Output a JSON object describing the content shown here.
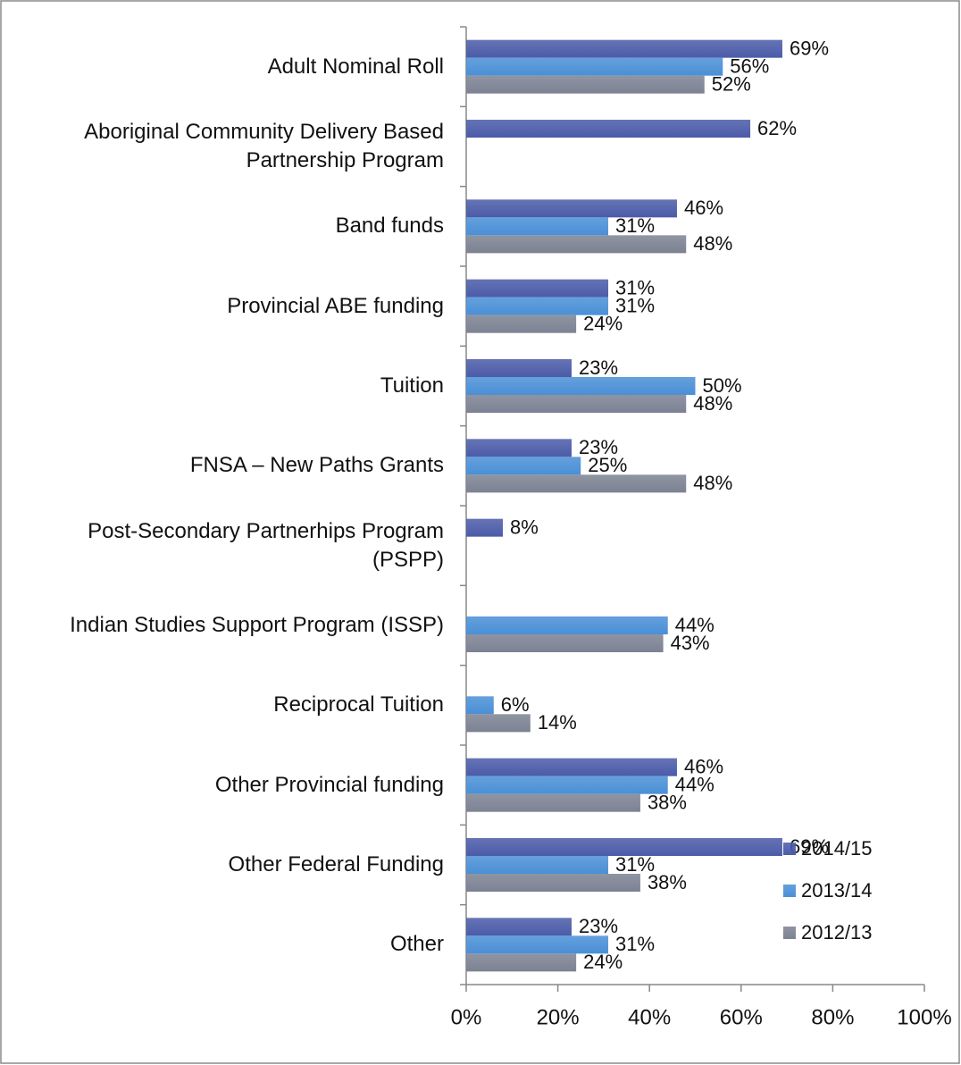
{
  "chart_data": {
    "type": "bar",
    "orientation": "horizontal",
    "categories": [
      "Adult Nominal Roll",
      "Aboriginal Community Delivery Based Partnership Program",
      "Band funds",
      "Provincial ABE funding",
      "Tuition",
      "FNSA – New Paths Grants",
      "Post-Secondary Partnerhips Program (PSPP)",
      "Indian Studies Support Program (ISSP)",
      "Reciprocal Tuition",
      "Other Provincial funding",
      "Other Federal Funding",
      "Other"
    ],
    "series": [
      {
        "name": "2014/15",
        "color": "#4b5ba8",
        "values": [
          69,
          62,
          46,
          31,
          23,
          23,
          8,
          null,
          null,
          46,
          69,
          23
        ],
        "value_labels": [
          "69%",
          "62%",
          "46%",
          "31%",
          "23%",
          "23%",
          "8%",
          null,
          null,
          "46%",
          "69%",
          "23%"
        ]
      },
      {
        "name": "2013/14",
        "color": "#4a8fd6",
        "values": [
          56,
          null,
          31,
          31,
          50,
          25,
          null,
          44,
          6,
          44,
          31,
          31
        ],
        "value_labels": [
          "56%",
          null,
          "31%",
          "31%",
          "50%",
          "25%",
          null,
          "44%",
          "6%",
          "44%",
          "31%",
          "31%"
        ]
      },
      {
        "name": "2012/13",
        "color": "#7c8293",
        "values": [
          52,
          null,
          48,
          24,
          48,
          48,
          null,
          43,
          14,
          38,
          38,
          24
        ],
        "value_labels": [
          "52%",
          null,
          "48%",
          "24%",
          "48%",
          "48%",
          null,
          "43%",
          "14%",
          "38%",
          "38%",
          "24%"
        ]
      }
    ],
    "xlim": [
      0,
      100
    ],
    "xticks": [
      {
        "value": 0,
        "label": "0%"
      },
      {
        "value": 20,
        "label": "20%"
      },
      {
        "value": 40,
        "label": "40%"
      },
      {
        "value": 60,
        "label": "60%"
      },
      {
        "value": 80,
        "label": "80%"
      },
      {
        "value": 100,
        "label": "100%"
      }
    ],
    "legend": "right",
    "grid": false
  }
}
